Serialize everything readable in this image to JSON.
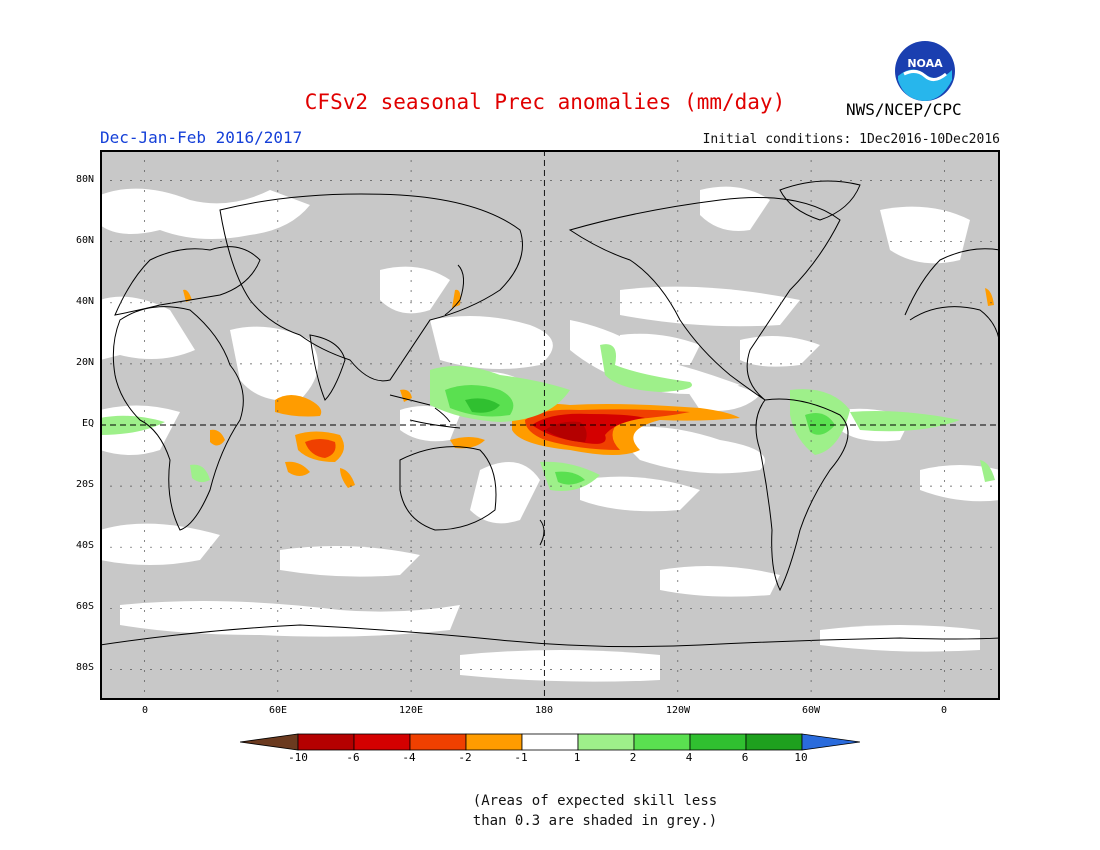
{
  "header": {
    "title": "CFSv2 seasonal Prec anomalies (mm/day)",
    "season": "Dec-Jan-Feb 2016/2017",
    "initial_conditions": "Initial conditions: 1Dec2016-10Dec2016",
    "agency": "NWS/NCEP/CPC",
    "logo_text": "NOAA"
  },
  "map": {
    "lat_ticks": [
      "80N",
      "60N",
      "40N",
      "20N",
      "EQ",
      "20S",
      "40S",
      "60S",
      "80S"
    ],
    "lon_ticks": [
      "0",
      "60E",
      "120E",
      "180",
      "120W",
      "60W",
      "0"
    ],
    "lon_range_deg_east": [
      -20,
      385
    ],
    "lat_range": [
      -90,
      90
    ]
  },
  "colorbar": {
    "labels": [
      "-10",
      "-6",
      "-4",
      "-2",
      "-1",
      "1",
      "2",
      "4",
      "6",
      "10"
    ],
    "colors": [
      "#6b3a1f",
      "#b40000",
      "#d40000",
      "#f04000",
      "#ff9c00",
      "#ffffff",
      "#9ef08a",
      "#5ae050",
      "#30c030",
      "#1ea01e",
      "#2a6bdc"
    ]
  },
  "note": {
    "line1": "(Areas of expected skill less",
    "line2": "than 0.3 are shaded in grey.)"
  }
}
